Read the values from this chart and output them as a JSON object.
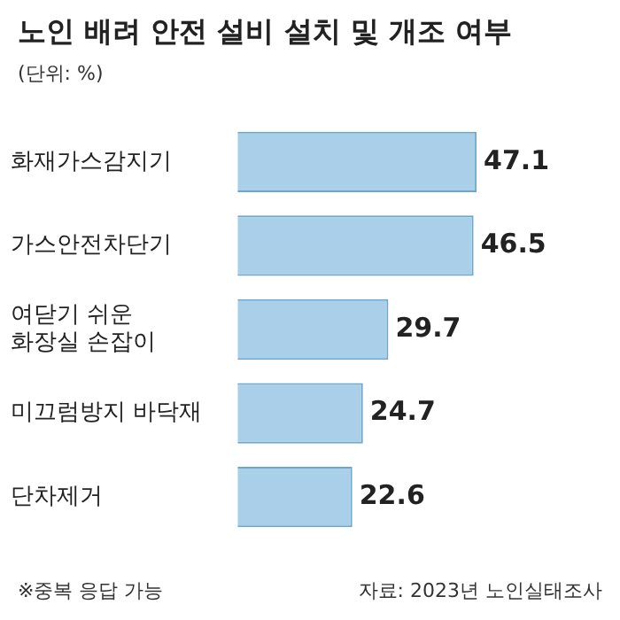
{
  "chart_data": {
    "type": "bar",
    "orientation": "horizontal",
    "title": "노인 배려 안전 설비 설치 및 개조 여부",
    "subtitle": "(단위: %)",
    "categories": [
      "화재가스감지기",
      "가스안전차단기",
      "여닫기 쉬운\n화장실 손잡이",
      "미끄럼방지 바닥재",
      "단차제거"
    ],
    "values": [
      47.1,
      46.5,
      29.7,
      24.7,
      22.6
    ],
    "color": "#a9d0e8",
    "data_labels": true,
    "grid": false,
    "legend": false,
    "annotations": [
      "※중복 응답 가능",
      "자료: 2023년 노인실태조사"
    ]
  }
}
